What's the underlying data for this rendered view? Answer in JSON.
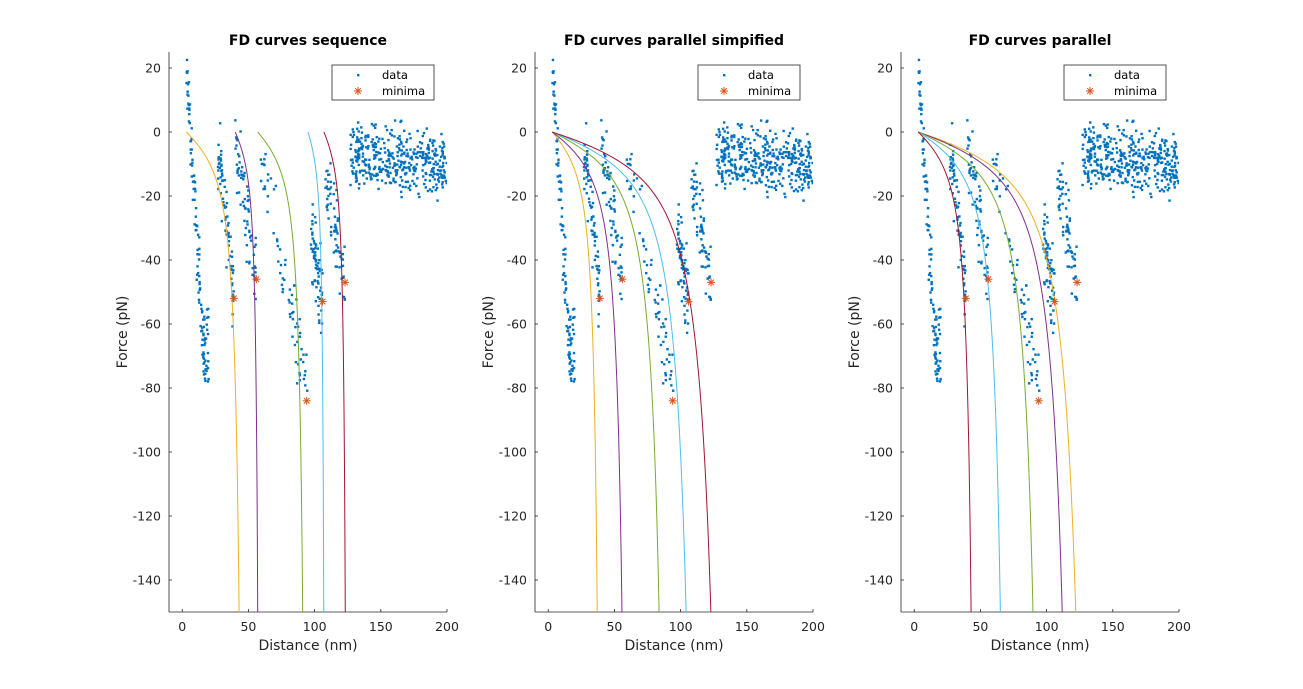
{
  "colors": {
    "data": "#0072BD",
    "minima": "#D95319",
    "palette": [
      "#EDB120",
      "#7E2F8E",
      "#77AC30",
      "#4DBEEE",
      "#A2142F"
    ]
  },
  "chart_data": [
    {
      "type": "scatter",
      "title": "FD curves sequence",
      "xlabel": "Distance (nm)",
      "ylabel": "Force (pN)",
      "xlim": [
        -10,
        200
      ],
      "ylim": [
        -150,
        25
      ],
      "xticks": [
        0,
        50,
        100,
        150,
        200
      ],
      "yticks": [
        20,
        0,
        -20,
        -40,
        -60,
        -80,
        -100,
        -120,
        -140
      ],
      "grid": false,
      "legend": {
        "position": "top-right",
        "entries": [
          "data",
          "minima"
        ]
      },
      "minima": [
        [
          39,
          -52
        ],
        [
          56,
          -46
        ],
        [
          94,
          -84
        ],
        [
          106,
          -53
        ],
        [
          123,
          -47
        ]
      ],
      "fit_curves": [
        {
          "x0": 3,
          "xa": 50
        },
        {
          "x0": 40,
          "xa": 60
        },
        {
          "x0": 57,
          "xa": 97
        },
        {
          "x0": 95,
          "xa": 109
        },
        {
          "x0": 107,
          "xa": 126
        }
      ]
    },
    {
      "type": "scatter",
      "title": "FD curves parallel simpified",
      "xlabel": "Distance (nm)",
      "ylabel": "Force (pN)",
      "xlim": [
        -10,
        200
      ],
      "ylim": [
        -150,
        25
      ],
      "xticks": [
        0,
        50,
        100,
        150,
        200
      ],
      "yticks": [
        20,
        0,
        -20,
        -40,
        -60,
        -80,
        -100,
        -120,
        -140
      ],
      "grid": false,
      "legend": {
        "position": "top-right",
        "entries": [
          "data",
          "minima"
        ]
      },
      "minima": [
        [
          39,
          -52
        ],
        [
          56,
          -46
        ],
        [
          94,
          -84
        ],
        [
          106,
          -53
        ],
        [
          123,
          -47
        ]
      ],
      "fit_curves": [
        {
          "x0": 3,
          "xa": 43
        },
        {
          "x0": 3,
          "xa": 65
        },
        {
          "x0": 3,
          "xa": 98
        },
        {
          "x0": 3,
          "xa": 122
        },
        {
          "x0": 3,
          "xa": 144
        }
      ]
    },
    {
      "type": "scatter",
      "title": "FD curves parallel",
      "xlabel": "Distance (nm)",
      "ylabel": "Force (pN)",
      "xlim": [
        -10,
        200
      ],
      "ylim": [
        -150,
        25
      ],
      "xticks": [
        0,
        50,
        100,
        150,
        200
      ],
      "yticks": [
        20,
        0,
        -20,
        -40,
        -60,
        -80,
        -100,
        -120,
        -140
      ],
      "grid": false,
      "legend": {
        "position": "top-right",
        "entries": [
          "data",
          "minima"
        ]
      },
      "minima": [
        [
          39,
          -52
        ],
        [
          56,
          -46
        ],
        [
          94,
          -84
        ],
        [
          106,
          -53
        ],
        [
          123,
          -47
        ]
      ],
      "fit_curves": [
        {
          "x0": 3,
          "xa": 143,
          "color": "#EDB120"
        },
        {
          "x0": 3,
          "xa": 131,
          "color": "#7E2F8E"
        },
        {
          "x0": 3,
          "xa": 105,
          "color": "#77AC30"
        },
        {
          "x0": 3,
          "xa": 76,
          "color": "#4DBEEE"
        },
        {
          "x0": 3,
          "xa": 50,
          "color": "#A2142F"
        }
      ]
    }
  ]
}
